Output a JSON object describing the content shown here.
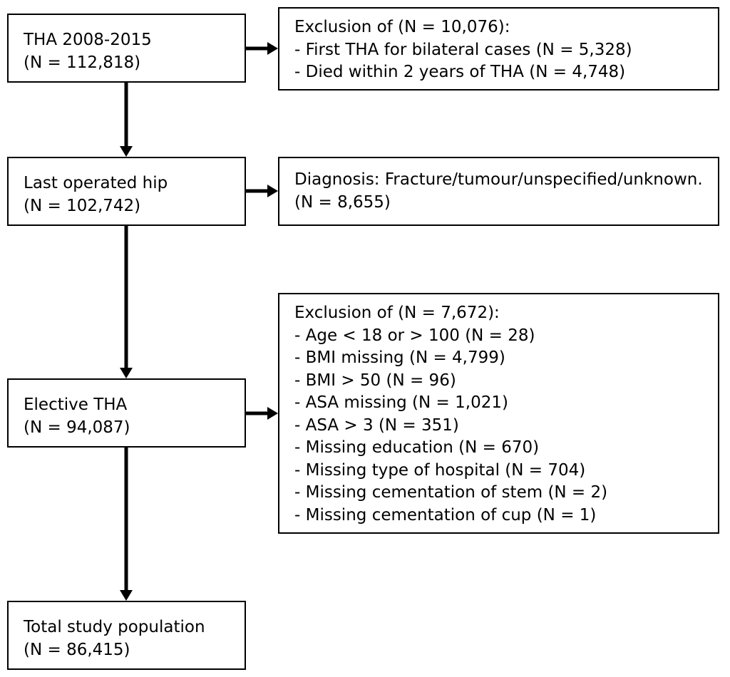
{
  "boxes": {
    "tha": {
      "line1": "THA 2008-2015",
      "line2": "(N = 112,818)"
    },
    "last_operated": {
      "line1": "Last operated hip",
      "line2": "(N = 102,742)"
    },
    "elective": {
      "line1": "Elective THA",
      "line2": "(N = 94,087)"
    },
    "total": {
      "line1": "Total study population",
      "line2": "(N = 86,415)"
    }
  },
  "exclusions": {
    "first": {
      "header": "Exclusion of (N = 10,076):",
      "items": [
        "- First THA for bilateral cases (N = 5,328)",
        "- Died within 2 years of THA (N = 4,748)"
      ]
    },
    "diagnosis": {
      "line1": "Diagnosis: Fracture/tumour/unspecified/unknown.",
      "line2": "(N = 8,655)"
    },
    "third": {
      "header": "Exclusion of (N = 7,672):",
      "items": [
        "- Age < 18 or > 100 (N = 28)",
        "- BMI missing (N = 4,799)",
        "- BMI > 50 (N = 96)",
        "- ASA missing (N = 1,021)",
        "- ASA > 3 (N = 351)",
        "- Missing education (N = 670)",
        "- Missing type of hospital (N = 704)",
        "- Missing cementation of stem (N = 2)",
        "- Missing cementation of cup (N = 1)"
      ]
    }
  }
}
